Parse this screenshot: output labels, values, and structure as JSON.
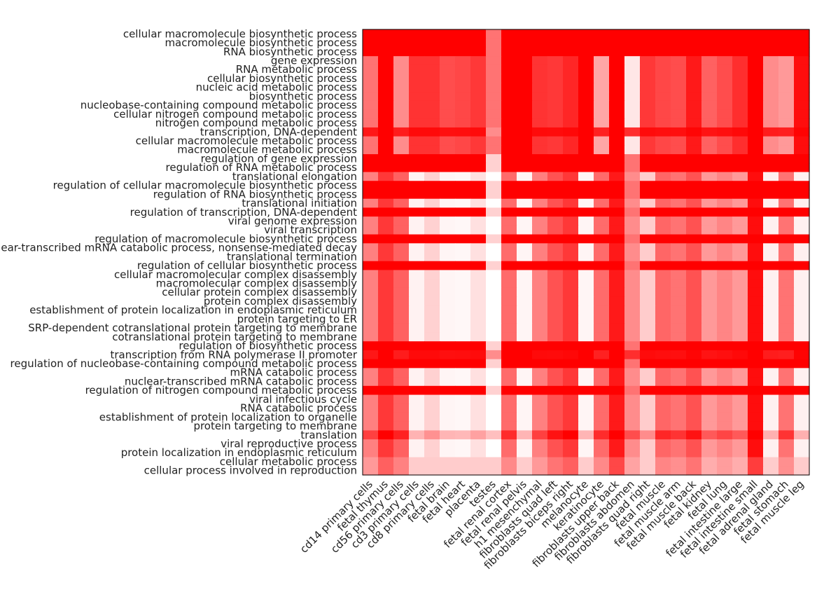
{
  "chart_data": {
    "type": "heatmap",
    "title": "",
    "xlabel": "",
    "ylabel": "",
    "colormap": {
      "low": "#ffffff",
      "high": "#ff0000"
    },
    "value_range": [
      0,
      1
    ],
    "grid": false,
    "legend": "none",
    "rows": [
      "cellular macromolecule biosynthetic process",
      "macromolecule biosynthetic process",
      "RNA biosynthetic process",
      "gene expression",
      "RNA metabolic process",
      "cellular biosynthetic process",
      "nucleic acid metabolic process",
      "biosynthetic process",
      "nucleobase-containing compound metabolic process",
      "cellular nitrogen compound metabolic process",
      "nitrogen compound metabolic process",
      "transcription, DNA-dependent",
      "cellular macromolecule metabolic process",
      "macromolecule metabolic process",
      "regulation of gene expression",
      "regulation of RNA metabolic process",
      "translational elongation",
      "regulation of cellular macromolecule biosynthetic process",
      "regulation of RNA biosynthetic process",
      "translational initiation",
      "regulation of transcription, DNA-dependent",
      "viral genome expression",
      "viral transcription",
      "regulation of macromolecule biosynthetic process",
      "nuclear-transcribed mRNA catabolic process, nonsense-mediated decay",
      "translational termination",
      "regulation of cellular biosynthetic process",
      "cellular macromolecular complex disassembly",
      "macromolecular complex disassembly",
      "cellular protein complex disassembly",
      "protein complex disassembly",
      "establishment of protein localization in endoplasmic reticulum",
      "protein targeting to ER",
      "SRP-dependent cotranslational protein targeting to membrane",
      "cotranslational protein targeting to membrane",
      "regulation of biosynthetic process",
      "transcription from RNA polymerase II promoter",
      "regulation of nucleobase-containing compound metabolic process",
      "mRNA catabolic process",
      "nuclear-transcribed mRNA catabolic process",
      "regulation of nitrogen compound metabolic process",
      "viral infectious cycle",
      "RNA catabolic process",
      "establishment of protein localization to organelle",
      "protein targeting to membrane",
      "translation",
      "viral reproductive process",
      "protein localization in endoplasmic reticulum",
      "cellular metabolic process",
      "cellular process involved in reproduction"
    ],
    "columns": [
      "cd14 primary cells",
      "fetal thymus",
      "cd56 primary cells",
      "cd3 primary cells",
      "cd8 primary cells",
      "fetal brain",
      "fetal heart",
      "placenta",
      "testes",
      "fetal renal cortex",
      "fetal renal pelvis",
      "h1 mesenchymal",
      "fibroblasts quad left",
      "fibroblasts biceps right",
      "melanocyte",
      "keratinocyte",
      "fibroblasts upper back",
      "fibroblasts abdomen",
      "fibroblasts quad right",
      "fetal muscle",
      "fetal muscle arm",
      "fetal muscle back",
      "fetal kidney",
      "fetal lung",
      "fetal intestine large",
      "fetal intestine small",
      "fetal adrenal gland",
      "fetal stomach",
      "fetal muscle leg"
    ],
    "col_profiles": {
      "base": [
        0.5,
        0.78,
        0.62,
        0.05,
        0.18,
        0.04,
        0.03,
        0.12,
        0.0,
        0.58,
        0.04,
        0.5,
        0.68,
        0.78,
        0.04,
        0.58,
        0.9,
        0.45,
        0.2,
        0.6,
        0.55,
        0.68,
        0.4,
        0.48,
        0.4,
        0.95,
        0.06,
        0.55,
        0.06
      ],
      "upper": [
        0.55,
        1.0,
        0.45,
        0.8,
        0.8,
        0.7,
        0.72,
        0.78,
        0.55,
        1.0,
        1.0,
        0.8,
        0.78,
        0.85,
        1.0,
        0.35,
        1.0,
        0.1,
        0.78,
        0.72,
        0.7,
        0.9,
        0.62,
        0.7,
        0.82,
        1.0,
        0.45,
        0.4,
        0.95
      ],
      "reg": [
        1,
        1,
        1,
        1,
        1,
        1,
        1,
        1,
        0.18,
        1,
        1,
        1,
        1,
        1,
        1,
        1,
        1,
        0.55,
        1,
        1,
        1,
        1,
        1,
        1,
        1,
        1,
        1,
        1,
        1
      ]
    },
    "row_groups": {
      "top": [
        0,
        1,
        2
      ],
      "upper": [
        3,
        4,
        5,
        6,
        7,
        8,
        9,
        10,
        12,
        13
      ],
      "transcription": [
        11,
        36
      ],
      "regulation": [
        14,
        15,
        17,
        18,
        20,
        23,
        26,
        35,
        37,
        40
      ],
      "translation": [
        45
      ],
      "bottom": [
        48,
        49
      ]
    }
  }
}
